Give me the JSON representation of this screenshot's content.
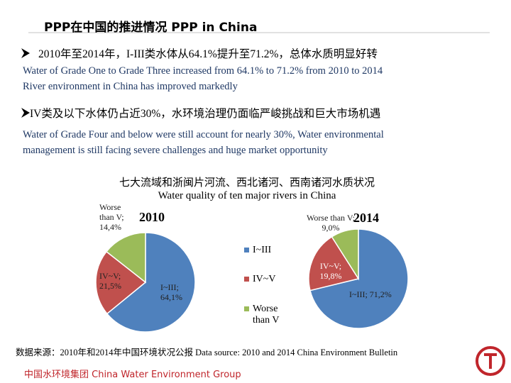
{
  "header": {
    "title": "PPP在中国的推进情况  PPP in China"
  },
  "bullets": [
    {
      "heading": "2010年至2014年，I-III类水体从64.1%提升至71.2%，总体水质明显好转",
      "lines": [
        "Water of Grade One to Grade Three increased from 64.1% to 71.2% from 2010 to 2014",
        "River environment in China has improved markedly"
      ]
    },
    {
      "heading": "IV类及以下水体仍占近30%，水环境治理仍面临严峻挑战和巨大市场机遇",
      "lines": [
        "Water of Grade Four and below were still account for nearly 30%, Water environmental",
        "management is still facing severe challenges and huge market opportunity"
      ]
    }
  ],
  "chart_header": {
    "title": "七大流域和浙闽片河流、西北诸河、西南诸河水质状况",
    "subtitle": "Water quality of ten major rivers in China"
  },
  "chart_data": [
    {
      "type": "pie",
      "label": "2010",
      "categories": [
        "I~III",
        "IV~V",
        "Worse than V"
      ],
      "values": [
        64.1,
        21.5,
        14.4
      ],
      "value_labels": [
        "I~III; 64,1%",
        "IV~V; 21,5%",
        "Worse than V; 14,4%"
      ],
      "colors": [
        "#4f81bd",
        "#c0504d",
        "#9bbb59"
      ]
    },
    {
      "type": "pie",
      "label": "2014",
      "categories": [
        "I~III",
        "IV~V",
        "Worse than V"
      ],
      "values": [
        71.2,
        19.8,
        9.0
      ],
      "value_labels": [
        "I~III; 71,2%",
        "IV~V; 19,8%",
        "Worse than V; 9,0%"
      ],
      "colors": [
        "#4f81bd",
        "#c0504d",
        "#9bbb59"
      ]
    }
  ],
  "source": "数据来源：2010年和2014年中国环境状况公报  Data source: 2010 and 2014 China Environment Bulletin",
  "footer": {
    "brand": "中国水环境集团 China Water Environment Group"
  }
}
